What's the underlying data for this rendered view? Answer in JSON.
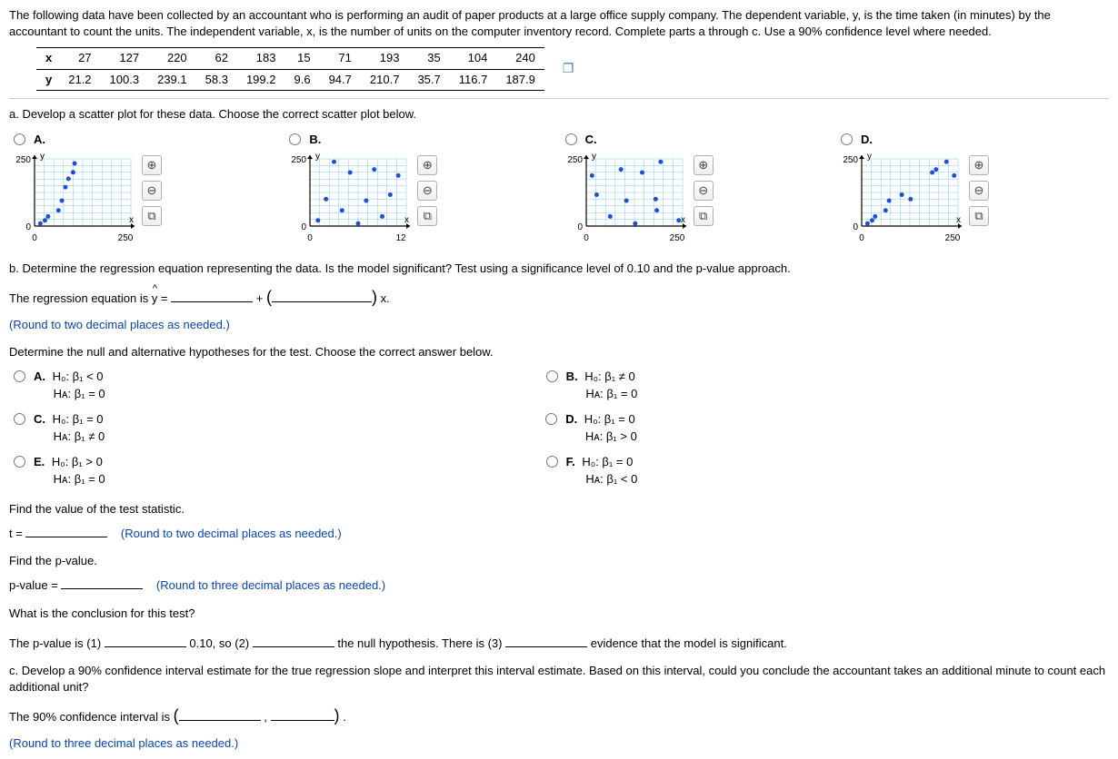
{
  "intro": "The following data have been collected by an accountant who is performing an audit of paper products at a large office supply company. The dependent variable, y, is the time taken (in minutes) by the accountant to count the units. The independent variable, x, is the number of units on the computer inventory record. Complete parts a through c. Use a 90% confidence level where needed.",
  "data": {
    "rowlabels": [
      "x",
      "y"
    ],
    "x": [
      27,
      127,
      220,
      62,
      183,
      15,
      71,
      193,
      35,
      104,
      240
    ],
    "y": [
      21.2,
      100.3,
      239.1,
      58.3,
      199.2,
      9.6,
      94.7,
      210.7,
      35.7,
      116.7,
      187.9
    ]
  },
  "part_a": {
    "prompt": "a. Develop a scatter plot for these data. Choose the correct scatter plot below.",
    "options": [
      "A.",
      "B.",
      "C.",
      "D."
    ],
    "charts": {
      "common": {
        "ylim": [
          0,
          250
        ],
        "ytick_label": "250",
        "axis_color": "#000",
        "grid_color": "#7fc9f0",
        "point_color": "#1f4fd6",
        "point_radius": 2.5,
        "axis_labels": {
          "x": "x",
          "y": "y"
        },
        "font_size": 10
      },
      "A": {
        "xlim": [
          0,
          250
        ],
        "xtick_label": "250",
        "points": [
          [
            15,
            9.6
          ],
          [
            27,
            21.2
          ],
          [
            35,
            35.7
          ],
          [
            62,
            58.3
          ],
          [
            71,
            94.7
          ],
          [
            80,
            145
          ],
          [
            88,
            176
          ],
          [
            100,
            200
          ],
          [
            104,
            233
          ]
        ]
      },
      "B": {
        "xlim": [
          0,
          12
        ],
        "xtick_label": "12",
        "points": [
          [
            1,
            21.2
          ],
          [
            2,
            100.3
          ],
          [
            3,
            239.1
          ],
          [
            4,
            58.3
          ],
          [
            5,
            199.2
          ],
          [
            6,
            9.6
          ],
          [
            7,
            94.7
          ],
          [
            8,
            210.7
          ],
          [
            9,
            35.7
          ],
          [
            10,
            116.7
          ],
          [
            11,
            187.9
          ]
        ]
      },
      "C": {
        "xlim": [
          0,
          250
        ],
        "xtick_label": "250",
        "points": [
          [
            15,
            187.9
          ],
          [
            27,
            116.7
          ],
          [
            62,
            35.7
          ],
          [
            90,
            210.7
          ],
          [
            104,
            94.7
          ],
          [
            127,
            9.6
          ],
          [
            145,
            199.2
          ],
          [
            183,
            58.3
          ],
          [
            193,
            239.1
          ],
          [
            180,
            100.3
          ],
          [
            240,
            21.2
          ]
        ]
      },
      "D": {
        "xlim": [
          0,
          250
        ],
        "xtick_label": "250",
        "points": [
          [
            15,
            9.6
          ],
          [
            27,
            21.2
          ],
          [
            35,
            35.7
          ],
          [
            62,
            58.3
          ],
          [
            71,
            94.7
          ],
          [
            104,
            116.7
          ],
          [
            127,
            100.3
          ],
          [
            183,
            199.2
          ],
          [
            193,
            210.7
          ],
          [
            220,
            239.1
          ],
          [
            240,
            187.9
          ]
        ]
      }
    }
  },
  "part_b": {
    "prompt": "b. Determine the regression equation representing the data. Is the model significant? Test using a significance level of 0.10 and the p-value approach.",
    "eq_lead": "The regression equation is ",
    "eq_mid": " + ",
    "eq_tail": " x.",
    "round_note": "(Round to two decimal places as needed.)",
    "hyp_prompt": "Determine the null and alternative hypotheses for the test. Choose the correct answer below.",
    "hyp": {
      "A": {
        "H0": "H₀: β₁ < 0",
        "HA": "Hᴀ: β₁ = 0"
      },
      "B": {
        "H0": "H₀: β₁ ≠ 0",
        "HA": "Hᴀ: β₁ = 0"
      },
      "C": {
        "H0": "H₀: β₁ = 0",
        "HA": "Hᴀ: β₁ ≠ 0"
      },
      "D": {
        "H0": "H₀: β₁ = 0",
        "HA": "Hᴀ: β₁ > 0"
      },
      "E": {
        "H0": "H₀: β₁ > 0",
        "HA": "Hᴀ: β₁ = 0"
      },
      "F": {
        "H0": "H₀: β₁ = 0",
        "HA": "Hᴀ: β₁ < 0"
      }
    },
    "tstat_prompt": "Find the value of the test statistic.",
    "tstat_label": "t = ",
    "tstat_round": "(Round to two decimal places as needed.)",
    "pval_prompt": "Find the p-value.",
    "pval_label": "p-value = ",
    "pval_round": "(Round to three decimal places as needed.)",
    "concl_prompt": "What is the conclusion for this test?",
    "concl_parts": {
      "p1": "The p-value is (1) ",
      "p2": " 0.10, so (2) ",
      "p3": " the null hypothesis. There is (3) ",
      "p4": " evidence that the model is significant."
    }
  },
  "part_c": {
    "prompt": "c. Develop a 90% confidence interval estimate for the true regression slope and interpret this interval estimate. Based on this interval, could you conclude the accountant takes an additional minute to count each additional unit?",
    "ci_lead": "The 90% confidence interval is ",
    "ci_round": "(Round to three decimal places as needed.)"
  },
  "tools": {
    "zoom_in": "⊕",
    "zoom_out": "⊖",
    "expand": "⧉"
  }
}
